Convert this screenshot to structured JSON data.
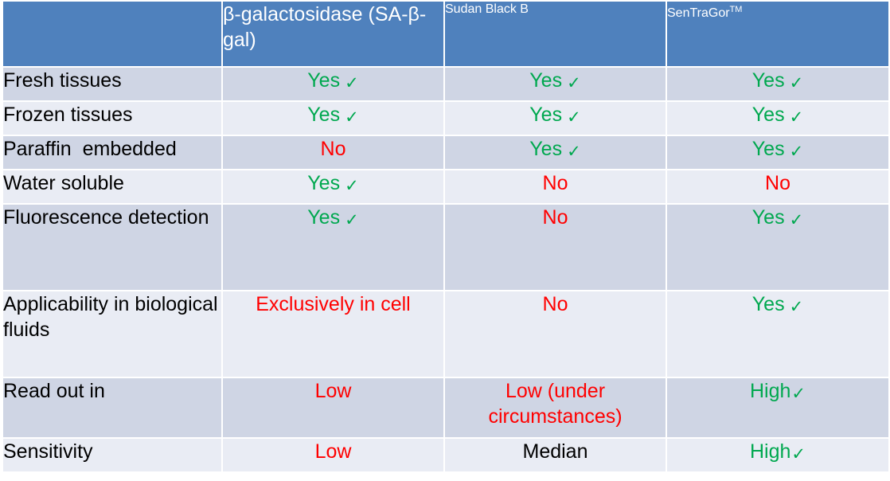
{
  "header": {
    "col0": "",
    "col1": "β-galactosidase (SA-β-gal)",
    "col2": "Sudan Black B",
    "col3_base": "SenTraGor",
    "col3_sup": "TM"
  },
  "rows": [
    {
      "label": "Fresh tissues",
      "cells": [
        {
          "text": "Yes",
          "check": true
        },
        {
          "text": "Yes",
          "check": true
        },
        {
          "text": "Yes",
          "check": true
        }
      ]
    },
    {
      "label": "Frozen tissues",
      "cells": [
        {
          "text": "Yes",
          "check": true
        },
        {
          "text": "Yes",
          "check": true
        },
        {
          "text": "Yes",
          "check": true
        }
      ]
    },
    {
      "label": "Paraffin  embedded",
      "cells": [
        {
          "text": "No",
          "check": false
        },
        {
          "text": "Yes",
          "check": true
        },
        {
          "text": "Yes",
          "check": true
        }
      ]
    },
    {
      "label": "Water soluble",
      "cells": [
        {
          "text": "Yes",
          "check": true
        },
        {
          "text": "No",
          "check": false
        },
        {
          "text": "No",
          "check": false
        }
      ]
    },
    {
      "label": "Fluorescence detection",
      "cells": [
        {
          "text": "Yes",
          "check": true
        },
        {
          "text": "No",
          "check": false
        },
        {
          "text": "Yes",
          "check": true
        }
      ]
    },
    {
      "label": "Applicability in biological fluids",
      "cells": [
        {
          "text": "Exclusively in cell",
          "check": false
        },
        {
          "text": "No",
          "check": false
        },
        {
          "text": "Yes",
          "check": true
        }
      ]
    },
    {
      "label": "Read out in",
      "cells": [
        {
          "text": "Low",
          "check": false
        },
        {
          "text": "Low (under circumstances)",
          "check": false
        },
        {
          "text": "High",
          "check": true
        }
      ]
    },
    {
      "label": "Sensitivity",
      "cells": [
        {
          "text": "Low",
          "check": false
        },
        {
          "text": "Median",
          "check": false
        },
        {
          "text": "High",
          "check": true
        }
      ]
    }
  ],
  "check_symbol": "✓",
  "colors": {
    "header_bg": "#4f81bd",
    "row_odd_bg": "#cfd5e4",
    "row_even_bg": "#e9ecf4",
    "positive_text": "#00a84f",
    "negative_text": "#ff0000",
    "neutral_text": "#000000"
  }
}
